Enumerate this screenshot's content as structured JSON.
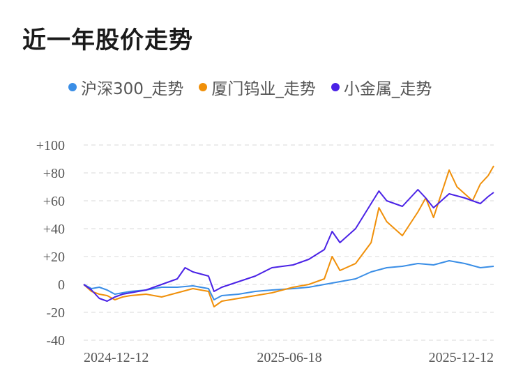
{
  "title": "近一年股价走势",
  "chart_data": {
    "type": "line",
    "title": "近一年股价走势",
    "xlabel": "",
    "ylabel": "",
    "ylim": [
      -40,
      100
    ],
    "y_ticks": [
      "+100",
      "+80",
      "+60",
      "+40",
      "+20",
      "0",
      "-20",
      "-40"
    ],
    "y_tick_values": [
      100,
      80,
      60,
      40,
      20,
      0,
      -20,
      -40
    ],
    "x_ticks": [
      "2024-12-12",
      "2025-06-18",
      "2025-12-12"
    ],
    "grid": true,
    "legend_position": "top",
    "x_start": "2024-12-12",
    "x_end": "2025-12-15",
    "series": [
      {
        "name": "沪深300_走势",
        "color": "#3a8ee6",
        "points": [
          [
            "2024-12-12",
            0
          ],
          [
            "2024-12-19",
            -3
          ],
          [
            "2024-12-26",
            -2
          ],
          [
            "2025-01-02",
            -4
          ],
          [
            "2025-01-09",
            -7
          ],
          [
            "2025-01-16",
            -6
          ],
          [
            "2025-01-23",
            -5
          ],
          [
            "2025-02-06",
            -4
          ],
          [
            "2025-02-20",
            -2
          ],
          [
            "2025-03-06",
            -2
          ],
          [
            "2025-03-20",
            -1
          ],
          [
            "2025-04-03",
            -3
          ],
          [
            "2025-04-08",
            -11
          ],
          [
            "2025-04-15",
            -8
          ],
          [
            "2025-04-30",
            -7
          ],
          [
            "2025-05-15",
            -5
          ],
          [
            "2025-05-30",
            -4
          ],
          [
            "2025-06-18",
            -3
          ],
          [
            "2025-07-02",
            -2
          ],
          [
            "2025-07-16",
            0
          ],
          [
            "2025-07-30",
            2
          ],
          [
            "2025-08-13",
            4
          ],
          [
            "2025-08-27",
            9
          ],
          [
            "2025-09-10",
            12
          ],
          [
            "2025-09-24",
            13
          ],
          [
            "2025-10-08",
            15
          ],
          [
            "2025-10-22",
            14
          ],
          [
            "2025-11-05",
            17
          ],
          [
            "2025-11-19",
            15
          ],
          [
            "2025-12-03",
            12
          ],
          [
            "2025-12-15",
            13
          ]
        ]
      },
      {
        "name": "厦门钨业_走势",
        "color": "#f0900a",
        "points": [
          [
            "2024-12-12",
            0
          ],
          [
            "2024-12-19",
            -5
          ],
          [
            "2024-12-26",
            -7
          ],
          [
            "2025-01-02",
            -8
          ],
          [
            "2025-01-09",
            -11
          ],
          [
            "2025-01-16",
            -9
          ],
          [
            "2025-01-23",
            -8
          ],
          [
            "2025-02-06",
            -7
          ],
          [
            "2025-02-20",
            -9
          ],
          [
            "2025-03-06",
            -6
          ],
          [
            "2025-03-20",
            -3
          ],
          [
            "2025-04-03",
            -5
          ],
          [
            "2025-04-08",
            -16
          ],
          [
            "2025-04-15",
            -12
          ],
          [
            "2025-04-30",
            -10
          ],
          [
            "2025-05-15",
            -8
          ],
          [
            "2025-05-30",
            -6
          ],
          [
            "2025-06-18",
            -2
          ],
          [
            "2025-07-02",
            0
          ],
          [
            "2025-07-16",
            4
          ],
          [
            "2025-07-23",
            20
          ],
          [
            "2025-07-30",
            10
          ],
          [
            "2025-08-13",
            15
          ],
          [
            "2025-08-27",
            30
          ],
          [
            "2025-09-03",
            55
          ],
          [
            "2025-09-10",
            45
          ],
          [
            "2025-09-24",
            35
          ],
          [
            "2025-10-08",
            52
          ],
          [
            "2025-10-15",
            62
          ],
          [
            "2025-10-22",
            48
          ],
          [
            "2025-11-05",
            82
          ],
          [
            "2025-11-12",
            70
          ],
          [
            "2025-11-26",
            60
          ],
          [
            "2025-12-03",
            72
          ],
          [
            "2025-12-10",
            78
          ],
          [
            "2025-12-15",
            85
          ]
        ]
      },
      {
        "name": "小金属_走势",
        "color": "#4a22e6",
        "points": [
          [
            "2024-12-12",
            0
          ],
          [
            "2024-12-19",
            -4
          ],
          [
            "2024-12-26",
            -10
          ],
          [
            "2025-01-02",
            -12
          ],
          [
            "2025-01-09",
            -9
          ],
          [
            "2025-01-16",
            -7
          ],
          [
            "2025-01-23",
            -6
          ],
          [
            "2025-02-06",
            -4
          ],
          [
            "2025-02-20",
            0
          ],
          [
            "2025-03-06",
            4
          ],
          [
            "2025-03-13",
            12
          ],
          [
            "2025-03-20",
            9
          ],
          [
            "2025-04-03",
            6
          ],
          [
            "2025-04-08",
            -5
          ],
          [
            "2025-04-15",
            -2
          ],
          [
            "2025-04-30",
            2
          ],
          [
            "2025-05-15",
            6
          ],
          [
            "2025-05-30",
            12
          ],
          [
            "2025-06-18",
            14
          ],
          [
            "2025-07-02",
            18
          ],
          [
            "2025-07-16",
            25
          ],
          [
            "2025-07-23",
            38
          ],
          [
            "2025-07-30",
            30
          ],
          [
            "2025-08-13",
            40
          ],
          [
            "2025-08-27",
            58
          ],
          [
            "2025-09-03",
            67
          ],
          [
            "2025-09-10",
            60
          ],
          [
            "2025-09-24",
            56
          ],
          [
            "2025-10-08",
            68
          ],
          [
            "2025-10-15",
            62
          ],
          [
            "2025-10-22",
            55
          ],
          [
            "2025-11-05",
            65
          ],
          [
            "2025-11-19",
            62
          ],
          [
            "2025-12-03",
            58
          ],
          [
            "2025-12-10",
            63
          ],
          [
            "2025-12-15",
            66
          ]
        ]
      }
    ]
  }
}
